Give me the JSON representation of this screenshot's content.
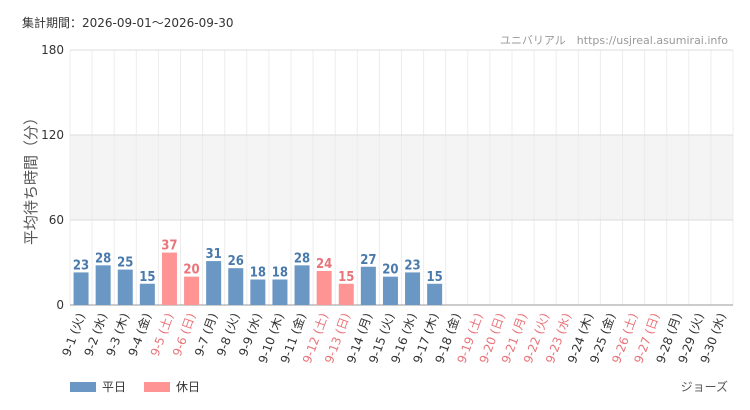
{
  "header": {
    "period": "集計期間：2026-09-01～2026-09-30",
    "credit": "ユニバリアル　https://usjreal.asumirai.info"
  },
  "footer": {
    "attraction": "ジョーズ"
  },
  "colors": {
    "weekday": "#6a97c4",
    "holiday": "#ff9494",
    "weekday_text": "#4a79ac",
    "holiday_text": "#e8747a",
    "grid_band": "#f4f4f4"
  },
  "chart_data": {
    "type": "bar",
    "ylabel": "平均待ち時間（分）",
    "xlabel": "",
    "ylim": [
      0,
      180
    ],
    "yticks": [
      0,
      60,
      120,
      180
    ],
    "grid": true,
    "legend_position": "bottom-left",
    "series": [
      {
        "name": "平日",
        "color": "#6a97c4"
      },
      {
        "name": "休日",
        "color": "#ff9494"
      }
    ],
    "categories": [
      "9-1 (火)",
      "9-2 (水)",
      "9-3 (木)",
      "9-4 (金)",
      "9-5 (土)",
      "9-6 (日)",
      "9-7 (月)",
      "9-8 (火)",
      "9-9 (水)",
      "9-10 (木)",
      "9-11 (金)",
      "9-12 (土)",
      "9-13 (日)",
      "9-14 (月)",
      "9-15 (火)",
      "9-16 (水)",
      "9-17 (木)",
      "9-18 (金)",
      "9-19 (土)",
      "9-20 (日)",
      "9-21 (月)",
      "9-22 (火)",
      "9-23 (水)",
      "9-24 (木)",
      "9-25 (金)",
      "9-26 (土)",
      "9-27 (日)",
      "9-28 (月)",
      "9-29 (火)",
      "9-30 (水)"
    ],
    "day_type": [
      "平日",
      "平日",
      "平日",
      "平日",
      "休日",
      "休日",
      "平日",
      "平日",
      "平日",
      "平日",
      "平日",
      "休日",
      "休日",
      "平日",
      "平日",
      "平日",
      "平日",
      "平日",
      "休日",
      "休日",
      "休日",
      "休日",
      "休日",
      "平日",
      "平日",
      "休日",
      "休日",
      "平日",
      "平日",
      "平日"
    ],
    "values": [
      23,
      28,
      25,
      15,
      37,
      20,
      31,
      26,
      18,
      18,
      28,
      24,
      15,
      27,
      20,
      23,
      15,
      null,
      null,
      null,
      null,
      null,
      null,
      null,
      null,
      null,
      null,
      null,
      null,
      null
    ]
  }
}
